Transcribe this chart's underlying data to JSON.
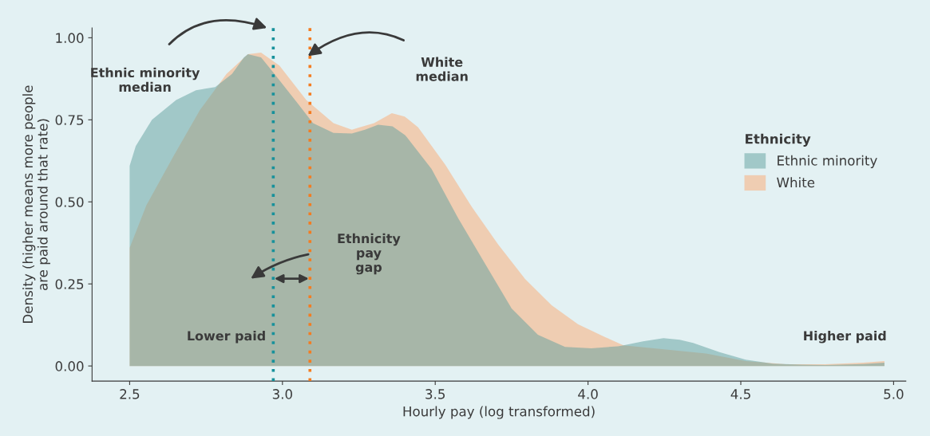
{
  "chart_data": {
    "type": "area",
    "xlabel": "Hourly pay (log transformed)",
    "ylabel": "Density (higher means more people\nare paid around that rate)",
    "legend_title": "Ethnicity",
    "series": [
      {
        "name": "Ethnic minority",
        "color": "#5f9f9e",
        "x": [
          2.5,
          2.52,
          2.573,
          2.652,
          2.717,
          2.78,
          2.835,
          2.874,
          2.887,
          2.93,
          2.965,
          3.05,
          3.1,
          3.167,
          3.227,
          3.27,
          3.313,
          3.36,
          3.402,
          3.488,
          3.575,
          3.664,
          3.75,
          3.836,
          3.925,
          4.011,
          4.098,
          4.116,
          4.18,
          4.247,
          4.3,
          4.344,
          4.43,
          4.516,
          4.605,
          4.7,
          4.778,
          4.9,
          4.97
        ],
        "values": [
          0.61,
          0.67,
          0.75,
          0.81,
          0.84,
          0.85,
          0.89,
          0.94,
          0.95,
          0.94,
          0.9,
          0.8,
          0.74,
          0.71,
          0.708,
          0.72,
          0.735,
          0.73,
          0.703,
          0.6,
          0.45,
          0.31,
          0.175,
          0.095,
          0.058,
          0.054,
          0.06,
          0.063,
          0.075,
          0.085,
          0.08,
          0.07,
          0.042,
          0.019,
          0.007,
          0.004,
          0.003,
          0.006,
          0.01
        ]
      },
      {
        "name": "White",
        "color": "#fba971",
        "x": [
          2.5,
          2.555,
          2.644,
          2.73,
          2.817,
          2.887,
          2.93,
          2.99,
          3.078,
          3.167,
          3.227,
          3.253,
          3.3,
          3.358,
          3.4,
          3.444,
          3.533,
          3.62,
          3.706,
          3.794,
          3.881,
          3.967,
          4.056,
          4.116,
          4.255,
          4.386,
          4.516,
          4.647,
          4.778,
          4.9,
          4.97
        ],
        "values": [
          0.36,
          0.49,
          0.64,
          0.78,
          0.89,
          0.95,
          0.955,
          0.915,
          0.81,
          0.74,
          0.72,
          0.727,
          0.74,
          0.77,
          0.76,
          0.727,
          0.613,
          0.484,
          0.37,
          0.265,
          0.185,
          0.127,
          0.088,
          0.063,
          0.05,
          0.038,
          0.015,
          0.005,
          0.005,
          0.01,
          0.015
        ]
      }
    ],
    "xlim": [
      2.377,
      5.04
    ],
    "ylim": [
      -0.046,
      1.03
    ],
    "xticks": [
      2.5,
      {
        "value": 3,
        "label": "3.0"
      },
      3.5,
      {
        "value": 4,
        "label": "4.0"
      },
      4.5,
      {
        "value": 5,
        "label": "5.0"
      }
    ],
    "yticks": [
      {
        "value": 0,
        "label": "0.00"
      },
      0.25,
      {
        "value": 0.5,
        "label": "0.50"
      },
      0.75,
      {
        "value": 1,
        "label": "1.00"
      }
    ],
    "ref_lines": [
      {
        "axis": "x",
        "value": 2.97,
        "color": "#17919b",
        "line_style": "dotted"
      },
      {
        "axis": "x",
        "value": 3.09,
        "color": "#f47c20",
        "line_style": "dotted"
      }
    ],
    "annotations": [
      "Ethnic minority\nmedian",
      "White\nmedian",
      "Ethnicity\npay\ngap",
      "Lower paid",
      "Higher paid"
    ],
    "grid": false,
    "legend": "right"
  }
}
